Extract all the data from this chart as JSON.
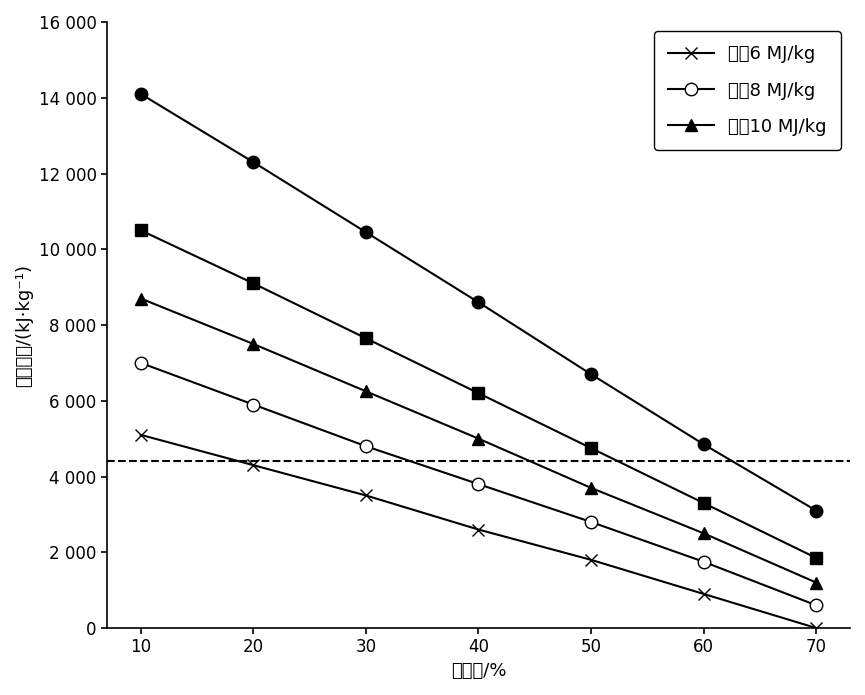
{
  "x": [
    10,
    20,
    30,
    40,
    50,
    60,
    70
  ],
  "series": [
    {
      "label": "热偔6 MJ/kg",
      "marker": "x",
      "mfc": "black",
      "mec": "black",
      "values": [
        5100,
        4300,
        3500,
        2600,
        1800,
        900,
        0
      ]
    },
    {
      "label": "热偔8 MJ/kg",
      "marker": "o",
      "mfc": "white",
      "mec": "black",
      "values": [
        7000,
        5900,
        4800,
        3800,
        2800,
        1750,
        600
      ]
    },
    {
      "label": "热值10 MJ/kg",
      "marker": "^",
      "mfc": "black",
      "mec": "black",
      "values": [
        8700,
        7500,
        6250,
        5000,
        3700,
        2500,
        1200
      ]
    },
    {
      "label": null,
      "marker": "s",
      "mfc": "black",
      "mec": "black",
      "values": [
        10500,
        9100,
        7650,
        6200,
        4750,
        3300,
        1850
      ]
    },
    {
      "label": null,
      "marker": "o",
      "mfc": "black",
      "mec": "black",
      "values": [
        14100,
        12300,
        10450,
        8600,
        6700,
        4850,
        3100
      ]
    }
  ],
  "dashed_line_y": 4400,
  "xlabel": "含水率/%",
  "ylabel": "进炉热值/(kJ·kg⁻¹)",
  "ylim": [
    0,
    16000
  ],
  "yticks": [
    0,
    2000,
    4000,
    6000,
    8000,
    10000,
    12000,
    14000,
    16000
  ],
  "ytick_labels": [
    "0",
    "2 000",
    "4 000",
    "6 000",
    "8 000",
    "10 000",
    "12 000",
    "14 000",
    "16 000"
  ],
  "xlim": [
    7,
    73
  ],
  "xticks": [
    10,
    20,
    30,
    40,
    50,
    60,
    70
  ],
  "legend_loc": "upper right",
  "background_color": "#ffffff",
  "line_color": "#000000",
  "marker_size": 9,
  "linewidth": 1.5,
  "font_size": 13,
  "label_font_size": 13,
  "tick_font_size": 12
}
